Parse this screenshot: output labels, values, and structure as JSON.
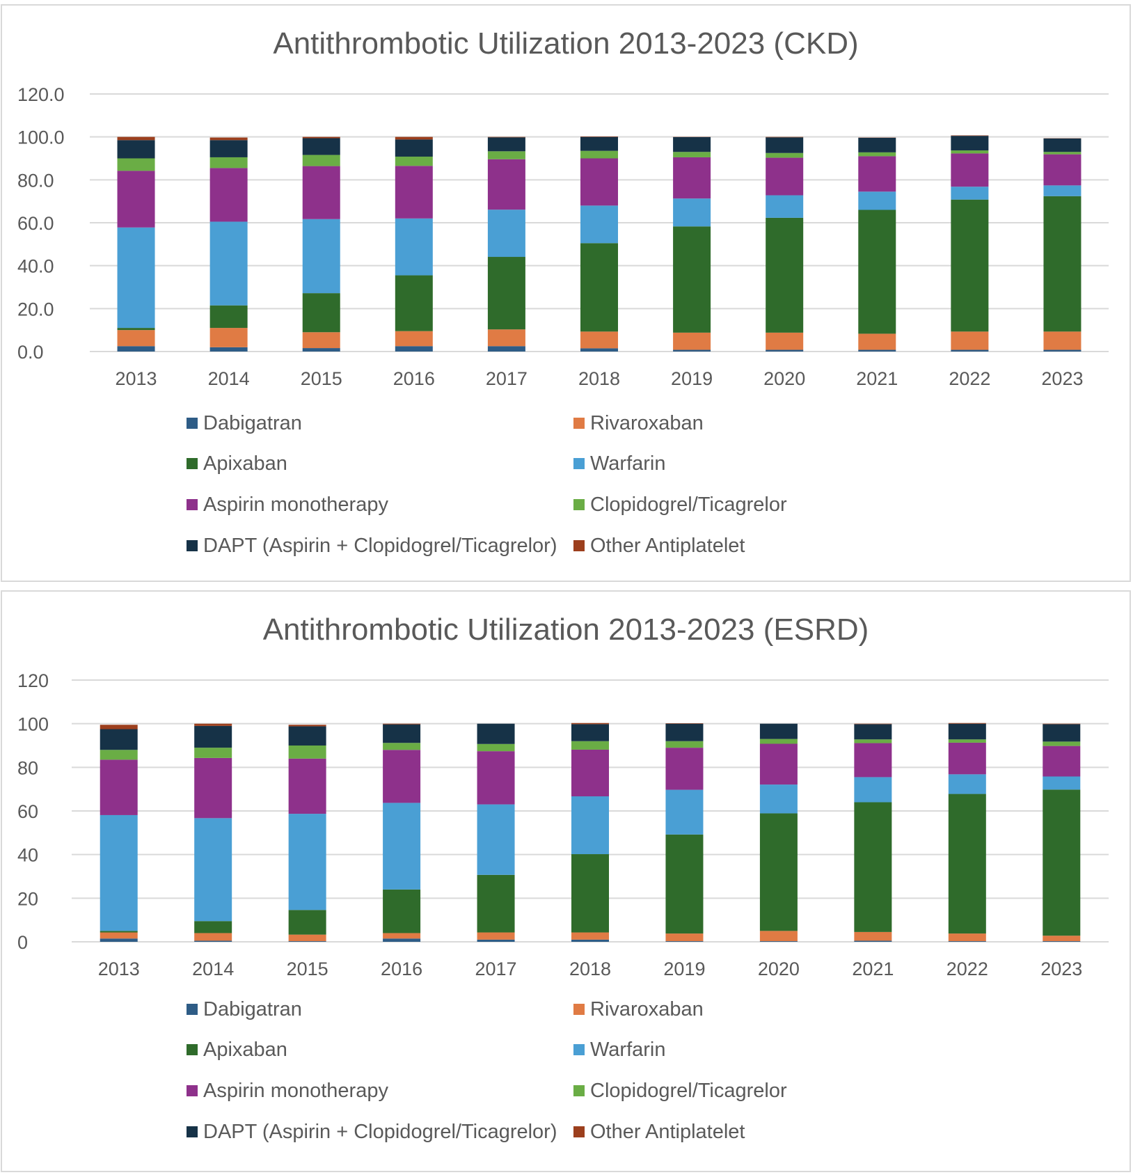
{
  "series_colors": {
    "Dabigatran": "#2e5c86",
    "Rivaroxaban": "#e07b44",
    "Apixaban": "#2f6b2b",
    "Warfarin": "#4a9fd4",
    "Aspirin monotherapy": "#8e318b",
    "Clopidogrel/Ticagrelor": "#6aad45",
    "DAPT (Aspirin + Clopidogrel/Ticagrelor)": "#163247",
    "Other Antiplatelet": "#9c3f1d"
  },
  "chart_data": [
    {
      "type": "bar",
      "stacked": true,
      "title": "Antithrombotic Utilization 2013-2023 (CKD)",
      "xlabel": "",
      "ylabel": "",
      "ylim": [
        0,
        120
      ],
      "yticks": [
        "0.0",
        "20.0",
        "40.0",
        "60.0",
        "80.0",
        "100.0",
        "120.0"
      ],
      "grid": true,
      "legend_position": "bottom",
      "categories": [
        "2013",
        "2014",
        "2015",
        "2016",
        "2017",
        "2018",
        "2019",
        "2020",
        "2021",
        "2022",
        "2023"
      ],
      "series": [
        {
          "name": "Dabigatran",
          "values": [
            2.5,
            2.0,
            1.6,
            2.5,
            2.5,
            1.5,
            0.8,
            0.8,
            0.8,
            0.8,
            0.8
          ]
        },
        {
          "name": "Rivaroxaban",
          "values": [
            7.5,
            9.0,
            7.4,
            7.0,
            7.8,
            7.8,
            8.0,
            8.0,
            7.5,
            8.5,
            8.5
          ]
        },
        {
          "name": "Apixaban",
          "values": [
            1.0,
            10.5,
            18.2,
            26.0,
            33.8,
            41.2,
            49.5,
            53.5,
            57.7,
            61.5,
            63.1
          ]
        },
        {
          "name": "Warfarin",
          "values": [
            46.8,
            39.0,
            34.5,
            26.5,
            22.0,
            17.5,
            13.0,
            10.5,
            8.5,
            6.0,
            5.0
          ]
        },
        {
          "name": "Aspirin monotherapy",
          "values": [
            26.4,
            25.0,
            24.7,
            24.5,
            23.5,
            22.0,
            19.2,
            17.5,
            16.5,
            15.5,
            14.5
          ]
        },
        {
          "name": "Clopidogrel/Ticagrelor",
          "values": [
            5.8,
            5.0,
            5.2,
            4.3,
            3.7,
            3.5,
            2.5,
            2.2,
            1.8,
            1.4,
            1.1
          ]
        },
        {
          "name": "DAPT (Aspirin + Clopidogrel/Ticagrelor)",
          "values": [
            8.5,
            8.0,
            7.8,
            8.0,
            6.5,
            6.5,
            6.9,
            7.3,
            6.8,
            6.8,
            6.3
          ]
        },
        {
          "name": "Other Antiplatelet",
          "values": [
            1.5,
            1.2,
            0.6,
            1.2,
            0.2,
            0.2,
            0.1,
            0.2,
            0.1,
            0.2,
            0.1
          ]
        }
      ]
    },
    {
      "type": "bar",
      "stacked": true,
      "title": "Antithrombotic Utilization 2013-2023 (ESRD)",
      "xlabel": "",
      "ylabel": "",
      "ylim": [
        0,
        120
      ],
      "yticks": [
        "0",
        "20",
        "40",
        "60",
        "80",
        "100",
        "120"
      ],
      "grid": true,
      "legend_position": "bottom",
      "categories": [
        "2013",
        "2014",
        "2015",
        "2016",
        "2017",
        "2018",
        "2019",
        "2020",
        "2021",
        "2022",
        "2023"
      ],
      "series": [
        {
          "name": "Dabigatran",
          "values": [
            1.5,
            0.5,
            0.3,
            1.5,
            1.0,
            1.0,
            0.3,
            0.3,
            0.5,
            0.3,
            0.3
          ]
        },
        {
          "name": "Rivaroxaban",
          "values": [
            2.8,
            3.5,
            3.0,
            2.5,
            3.3,
            3.3,
            3.5,
            4.7,
            4.0,
            3.5,
            2.5
          ]
        },
        {
          "name": "Apixaban",
          "values": [
            0.7,
            5.5,
            11.3,
            20.0,
            26.4,
            35.9,
            45.4,
            53.9,
            59.5,
            64.0,
            67.0
          ]
        },
        {
          "name": "Warfarin",
          "values": [
            53.1,
            47.2,
            44.1,
            39.7,
            32.3,
            26.5,
            20.5,
            13.2,
            11.5,
            9.0,
            6.0
          ]
        },
        {
          "name": "Aspirin monotherapy",
          "values": [
            25.4,
            27.6,
            25.3,
            24.3,
            24.4,
            21.4,
            19.3,
            18.7,
            15.6,
            14.5,
            14.0
          ]
        },
        {
          "name": "Clopidogrel/Ticagrelor",
          "values": [
            4.5,
            4.7,
            6.0,
            3.2,
            3.3,
            3.9,
            3.0,
            2.2,
            1.7,
            1.5,
            2.0
          ]
        },
        {
          "name": "DAPT (Aspirin + Clopidogrel/Ticagrelor)",
          "values": [
            9.5,
            10.0,
            8.8,
            8.5,
            9.3,
            7.8,
            8.0,
            7.0,
            7.0,
            7.2,
            8.0
          ]
        },
        {
          "name": "Other Antiplatelet",
          "values": [
            2.0,
            1.0,
            0.7,
            0.3,
            0.0,
            0.5,
            0.2,
            0.0,
            0.2,
            0.3,
            0.2
          ]
        }
      ]
    }
  ]
}
